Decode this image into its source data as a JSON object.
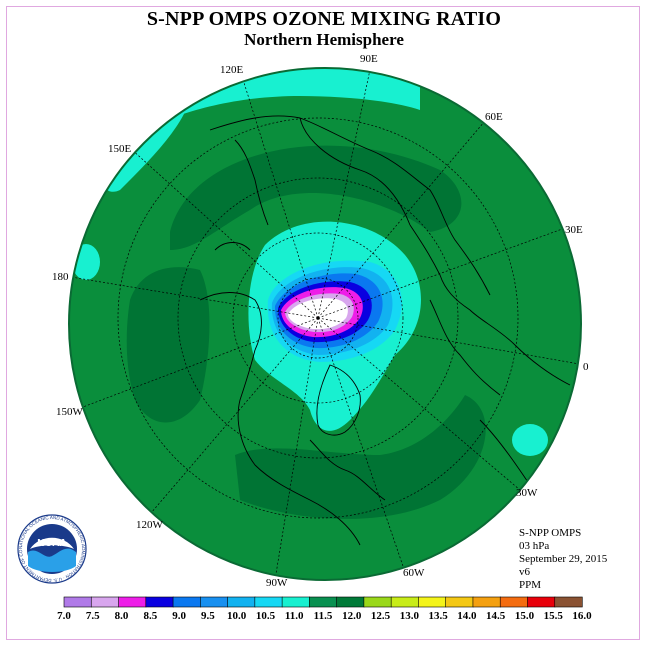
{
  "title": "S-NPP OMPS OZONE MIXING RATIO",
  "subtitle": "Northern Hemisphere",
  "info": {
    "instrument": "S-NPP OMPS",
    "level": "03 hPa",
    "date": "September 29, 2015",
    "version": "v6",
    "units": "PPM"
  },
  "logo": {
    "text": "NOAA",
    "ring_text": "NATIONAL OCEANIC AND ATMOSPHERIC ADMINISTRATION · U.S. DEPARTMENT OF COMMERCE"
  },
  "longitude_labels": [
    "90E",
    "120E",
    "60E",
    "150E",
    "30E",
    "180",
    "0",
    "150W",
    "30W",
    "120W",
    "60W",
    "90W"
  ],
  "legend": {
    "ticks": [
      "7.0",
      "7.5",
      "8.0",
      "8.5",
      "9.0",
      "9.5",
      "10.0",
      "10.5",
      "11.0",
      "11.5",
      "12.0",
      "12.5",
      "13.0",
      "13.5",
      "14.0",
      "14.5",
      "15.0",
      "15.5",
      "16.0"
    ],
    "colors": [
      "#b07ae8",
      "#d8a6ee",
      "#ee1ee8",
      "#0a00e0",
      "#0a78f0",
      "#1890f0",
      "#12b2f0",
      "#16d8f4",
      "#18f0d0",
      "#089050",
      "#007a38",
      "#9ad81a",
      "#c8ec18",
      "#f4f41a",
      "#f4c814",
      "#f4a010",
      "#f46c10",
      "#e8000a",
      "#8a5232"
    ]
  },
  "colors": {
    "field_base": "#0a8e3c",
    "field_dark": "#007434",
    "cyan": "#18f0d0",
    "coast": "#000000"
  }
}
